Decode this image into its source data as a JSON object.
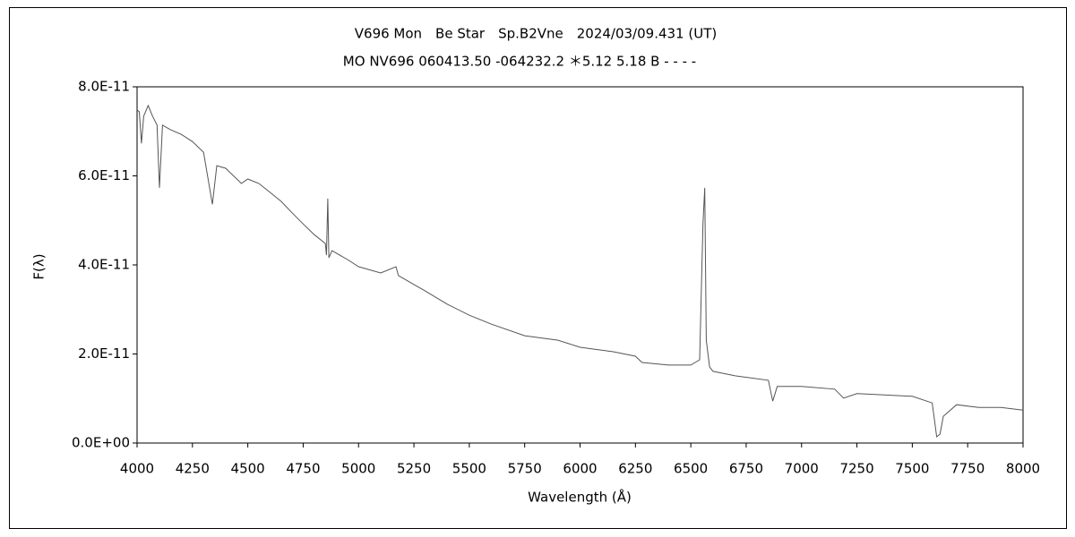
{
  "chart_data": {
    "type": "line",
    "title": "V696 Mon　Be Star　Sp.B2Vne　2024/03/09.431 (UT)",
    "subtitle": "MO NV696 060413.50 -064232.2 ＊5.12 5.18 B - - - -",
    "x_label": "Wavelength (Å)",
    "y_label": "F(λ)",
    "x": [
      4000,
      4010,
      4020,
      4030,
      4050,
      4070,
      4090,
      4101,
      4115,
      4150,
      4200,
      4250,
      4300,
      4340,
      4360,
      4400,
      4471,
      4500,
      4550,
      4600,
      4650,
      4700,
      4750,
      4800,
      4850,
      4855,
      4861,
      4866,
      4880,
      4950,
      5000,
      5100,
      5169,
      5180,
      5250,
      5300,
      5400,
      5500,
      5600,
      5750,
      5900,
      6000,
      6150,
      6250,
      6280,
      6400,
      6500,
      6540,
      6555,
      6563,
      6570,
      6585,
      6600,
      6700,
      6850,
      6870,
      6890,
      7000,
      7150,
      7190,
      7250,
      7500,
      7590,
      7610,
      7625,
      7640,
      7700,
      7800,
      7900,
      8000
    ],
    "series": [
      {
        "name": "F(λ)",
        "color": "#555555",
        "values": [
          7.48e-11,
          7.44e-11,
          6.73e-11,
          7.34e-11,
          7.58e-11,
          7.34e-11,
          7.14e-11,
          5.73e-11,
          7.14e-11,
          7.04e-11,
          6.93e-11,
          6.77e-11,
          6.53e-11,
          5.36e-11,
          6.23e-11,
          6.17e-11,
          5.83e-11,
          5.93e-11,
          5.83e-11,
          5.63e-11,
          5.43e-11,
          5.17e-11,
          4.92e-11,
          4.68e-11,
          4.48e-11,
          4.22e-11,
          5.49e-11,
          4.16e-11,
          4.32e-11,
          4.12e-11,
          3.96e-11,
          3.82e-11,
          3.96e-11,
          3.76e-11,
          3.56e-11,
          3.42e-11,
          3.12e-11,
          2.87e-11,
          2.67e-11,
          2.41e-11,
          2.31e-11,
          2.15e-11,
          2.05e-11,
          1.95e-11,
          1.81e-11,
          1.75e-11,
          1.75e-11,
          1.87e-11,
          4.92e-11,
          5.73e-11,
          2.31e-11,
          1.71e-11,
          1.61e-11,
          1.51e-11,
          1.41e-11,
          9.4e-12,
          1.27e-11,
          1.27e-11,
          1.21e-11,
          1.01e-11,
          1.11e-11,
          1.05e-11,
          9e-12,
          1.4e-12,
          2e-12,
          6e-12,
          8.6e-12,
          8e-12,
          8e-12,
          7.4e-12
        ]
      }
    ],
    "xlim": [
      4000,
      8000
    ],
    "xticks": [
      4000,
      4250,
      4500,
      4750,
      5000,
      5250,
      5500,
      5750,
      6000,
      6250,
      6500,
      6750,
      7000,
      7250,
      7500,
      7750,
      8000
    ],
    "ylim": [
      0,
      8e-11
    ],
    "yticks": [
      {
        "value": 0,
        "label": "0.0E+00"
      },
      {
        "value": 2e-11,
        "label": "2.0E-11"
      },
      {
        "value": 4e-11,
        "label": "4.0E-11"
      },
      {
        "value": 6e-11,
        "label": "6.0E-11"
      },
      {
        "value": 8e-11,
        "label": "8.0E-11"
      }
    ],
    "grid": false
  }
}
